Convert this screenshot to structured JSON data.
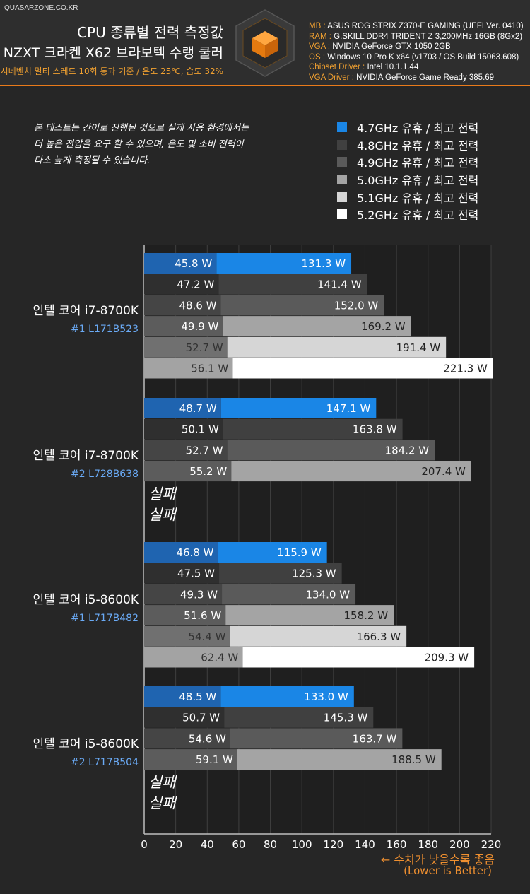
{
  "header": {
    "site": "QUASARZONE.CO.KR",
    "title": "CPU 종류별 전력 측정값",
    "subtitle_cooler": "NZXT 크라켄 X62 브라보텍 수랭 쿨러",
    "conditions": "시네벤치 멀티 스레드 10회 통과 기준 / 온도 25℃, 습도 32%",
    "specs": [
      {
        "key": "MB",
        "value": "ASUS ROG STRIX Z370-E GAMING (UEFI Ver. 0410)"
      },
      {
        "key": "RAM",
        "value": "G.SKILL DDR4 TRIDENT Z 3,200MHz 16GB (8Gx2)"
      },
      {
        "key": "VGA",
        "value": "NVIDIA GeForce GTX 1050 2GB"
      },
      {
        "key": "OS",
        "value": "Windows 10 Pro K x64 (v1703 / OS Build 15063.608)"
      },
      {
        "key": "Chipset Driver",
        "value": "Intel 10.1.1.44"
      },
      {
        "key": "VGA Driver",
        "value": "NVIDIA GeForce Game Ready 385.69"
      }
    ]
  },
  "note": [
    "본 테스트는 간이로 진행된 것으로 실제 사용 환경에서는",
    "더 높은 전압을 요구 할 수 있으며, 온도 및 소비 전력이",
    "다소 높게 측정될 수 있습니다."
  ],
  "footer": {
    "line1": "← 수치가 낮을수록 좋음",
    "line2": "(Lower is Better)"
  },
  "colors": {
    "idle_4.7": "#1f64b0",
    "max_4.7": "#1a86e6",
    "idle_4.8": "#2f2f2f",
    "max_4.8": "#404040",
    "idle_4.9": "#454545",
    "max_4.9": "#5a5a5a",
    "idle_5.0": "#5c5c5c",
    "max_5.0": "#a4a4a4",
    "idle_5.1": "#707070",
    "max_5.1": "#d6d6d6",
    "idle_5.2": "#a3a3a3",
    "max_5.2": "#ffffff",
    "accent": "#e97a1a",
    "sample_label": "#6aaaf5"
  },
  "chart_data": {
    "type": "bar",
    "orientation": "horizontal",
    "grid": true,
    "xlim": [
      0,
      220
    ],
    "xticks": [
      0,
      20,
      40,
      60,
      80,
      100,
      120,
      140,
      160,
      180,
      200,
      220
    ],
    "unit_suffix": " W",
    "fail_label": "실패",
    "legend": [
      {
        "label": "4.7GHz 유휴 / 최고 전력",
        "color": "#1a86e6"
      },
      {
        "label": "4.8GHz 유휴 / 최고 전력",
        "color": "#404040"
      },
      {
        "label": "4.9GHz 유휴 / 최고 전력",
        "color": "#5a5a5a"
      },
      {
        "label": "5.0GHz 유휴 / 최고 전력",
        "color": "#a4a4a4"
      },
      {
        "label": "5.1GHz 유휴 / 최고 전력",
        "color": "#d6d6d6"
      },
      {
        "label": "5.2GHz 유휴 / 최고 전력",
        "color": "#ffffff"
      }
    ],
    "groups": [
      {
        "name": "인텔 코어 i7-8700K",
        "sample": "#1 L171B523",
        "bars": [
          {
            "clock": "4.7",
            "idle": 45.8,
            "max": 131.3
          },
          {
            "clock": "4.8",
            "idle": 47.2,
            "max": 141.4
          },
          {
            "clock": "4.9",
            "idle": 48.6,
            "max": 152.0
          },
          {
            "clock": "5.0",
            "idle": 49.9,
            "max": 169.2
          },
          {
            "clock": "5.1",
            "idle": 52.7,
            "max": 191.4
          },
          {
            "clock": "5.2",
            "idle": 56.1,
            "max": 221.3
          }
        ]
      },
      {
        "name": "인텔 코어 i7-8700K",
        "sample": "#2 L728B638",
        "bars": [
          {
            "clock": "4.7",
            "idle": 48.7,
            "max": 147.1
          },
          {
            "clock": "4.8",
            "idle": 50.1,
            "max": 163.8
          },
          {
            "clock": "4.9",
            "idle": 52.7,
            "max": 184.2
          },
          {
            "clock": "5.0",
            "idle": 55.2,
            "max": 207.4
          },
          {
            "clock": "5.1",
            "failed": true
          },
          {
            "clock": "5.2",
            "failed": true
          }
        ]
      },
      {
        "name": "인텔 코어 i5-8600K",
        "sample": "#1 L717B482",
        "bars": [
          {
            "clock": "4.7",
            "idle": 46.8,
            "max": 115.9
          },
          {
            "clock": "4.8",
            "idle": 47.5,
            "max": 125.3
          },
          {
            "clock": "4.9",
            "idle": 49.3,
            "max": 134.0
          },
          {
            "clock": "5.0",
            "idle": 51.6,
            "max": 158.2
          },
          {
            "clock": "5.1",
            "idle": 54.4,
            "max": 166.3
          },
          {
            "clock": "5.2",
            "idle": 62.4,
            "max": 209.3
          }
        ]
      },
      {
        "name": "인텔 코어 i5-8600K",
        "sample": "#2 L717B504",
        "bars": [
          {
            "clock": "4.7",
            "idle": 48.5,
            "max": 133.0
          },
          {
            "clock": "4.8",
            "idle": 50.7,
            "max": 145.3
          },
          {
            "clock": "4.9",
            "idle": 54.6,
            "max": 163.7
          },
          {
            "clock": "5.0",
            "idle": 59.1,
            "max": 188.5
          },
          {
            "clock": "5.1",
            "failed": true
          },
          {
            "clock": "5.2",
            "failed": true
          }
        ]
      }
    ]
  }
}
